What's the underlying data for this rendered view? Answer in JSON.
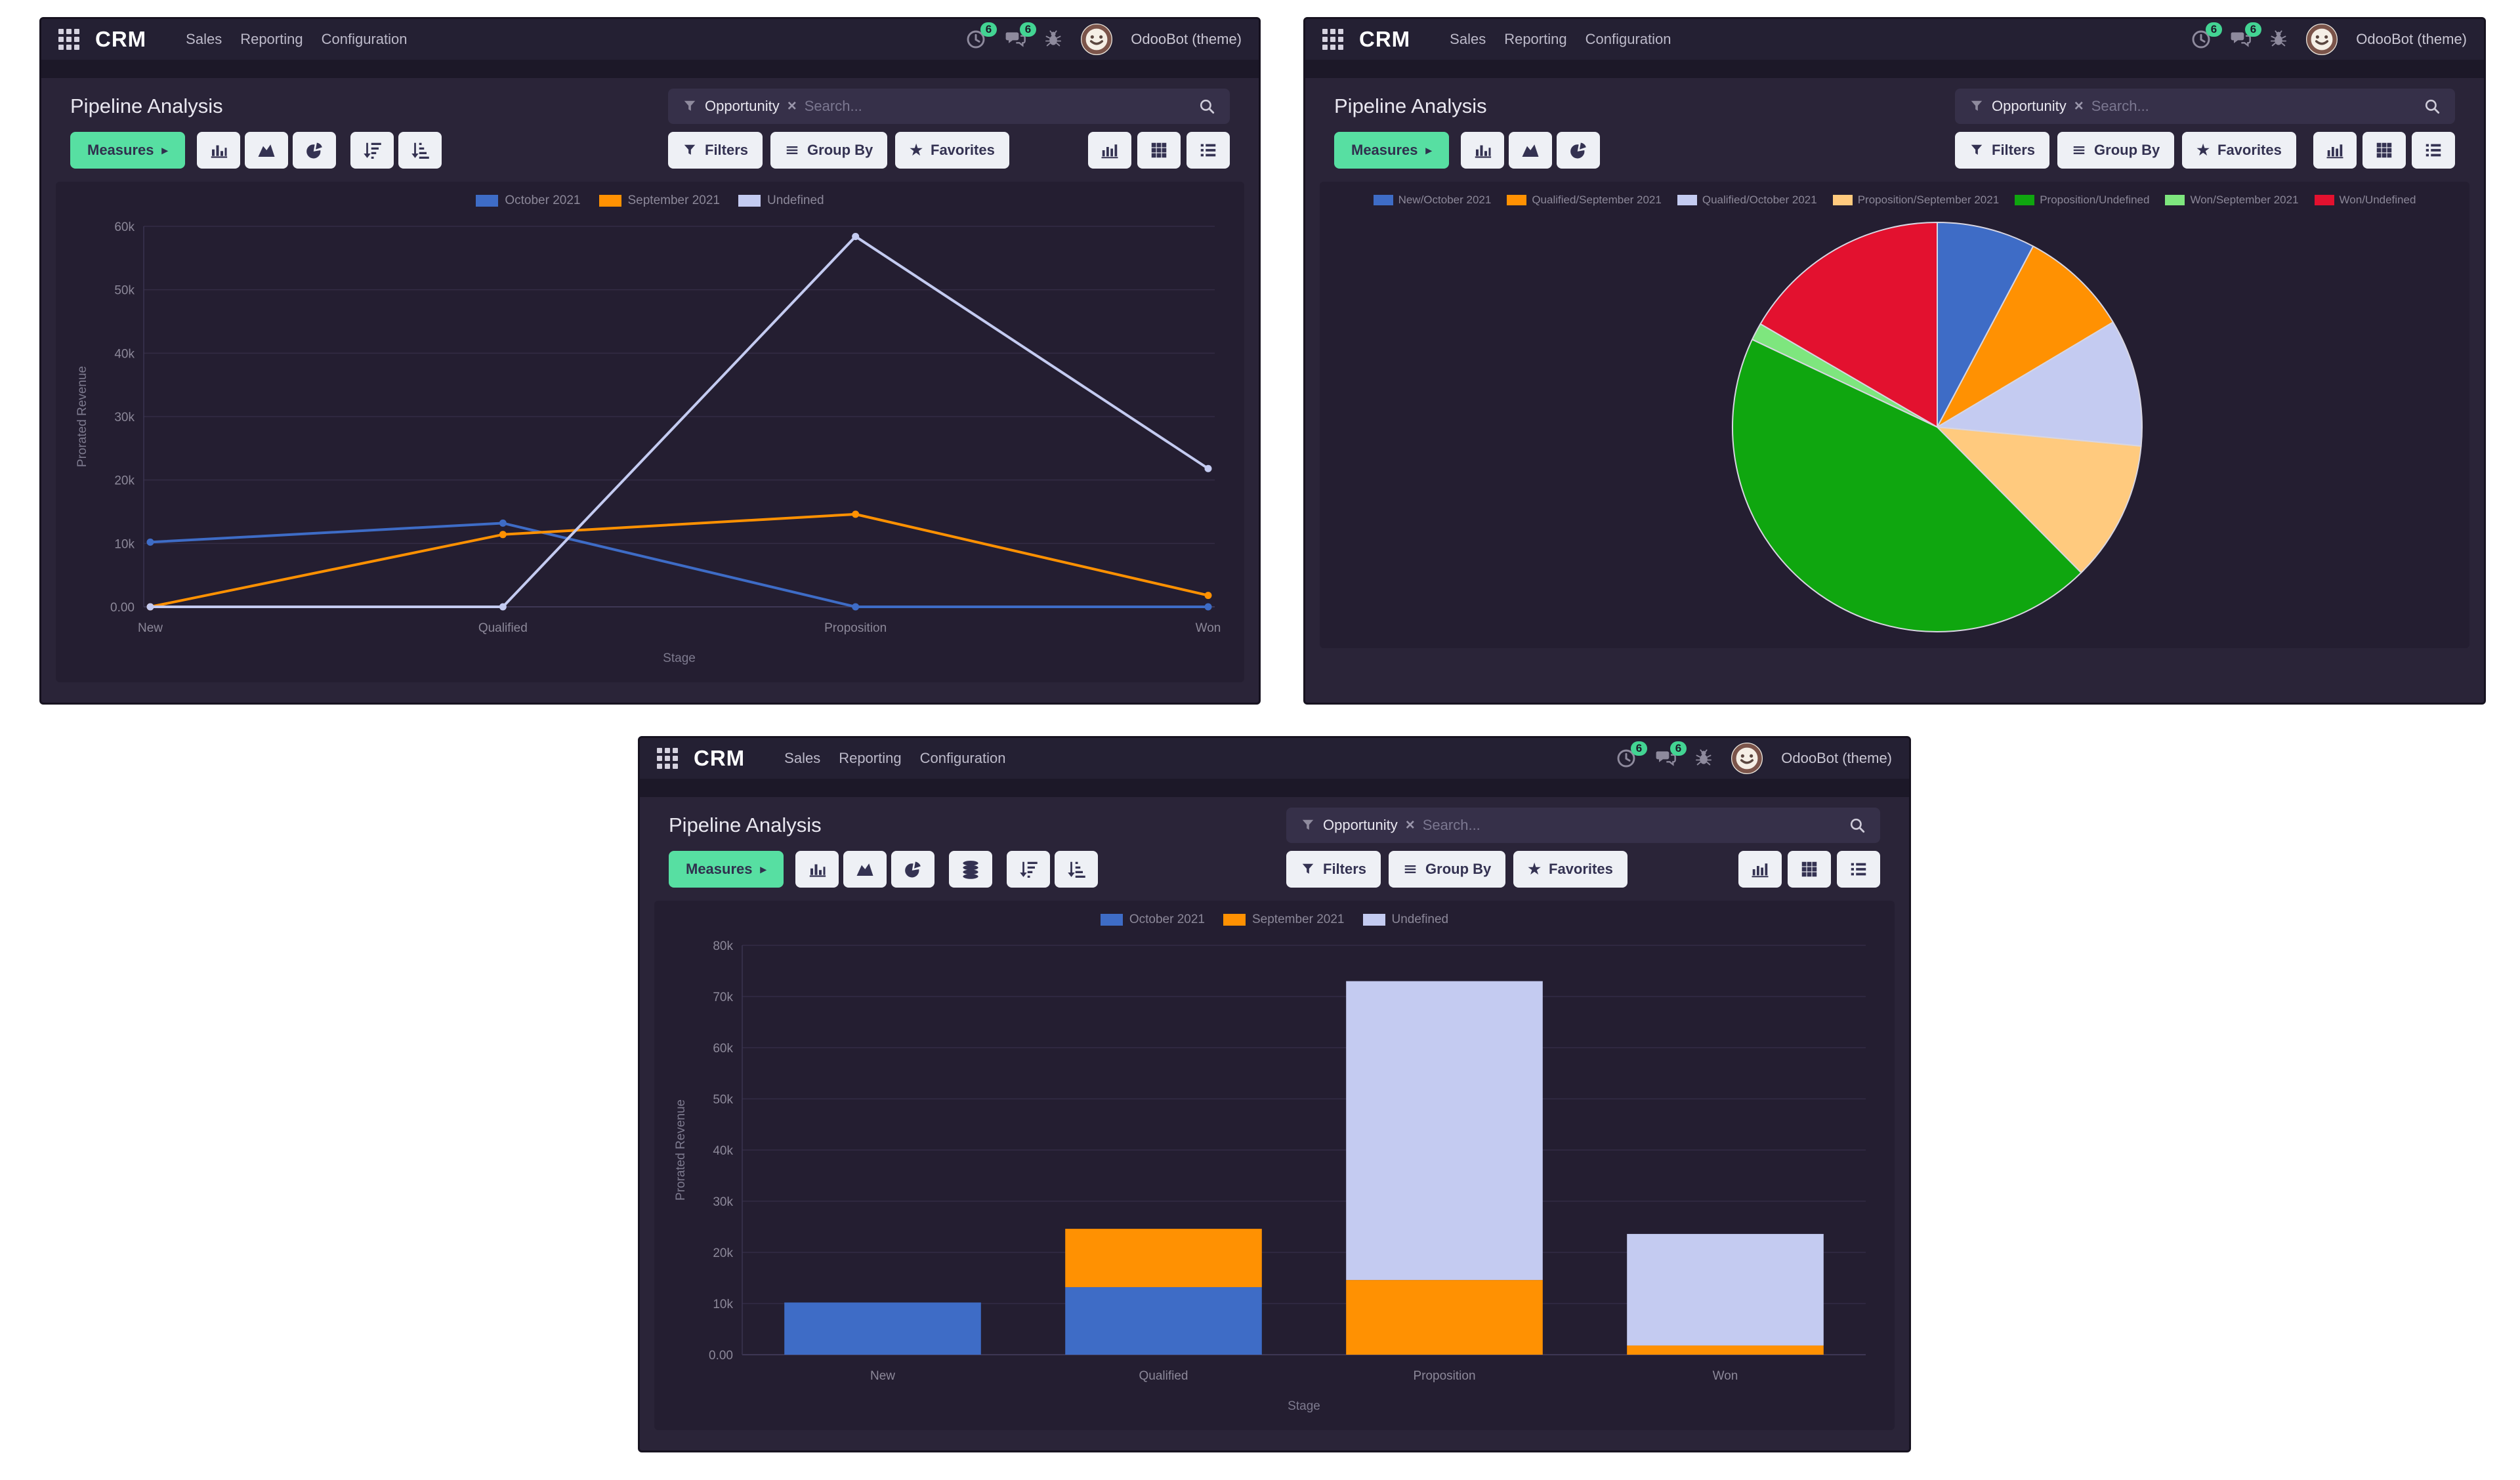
{
  "common": {
    "app_name": "CRM",
    "menus": [
      "Sales",
      "Reporting",
      "Configuration"
    ],
    "systray": {
      "activity_count": "6",
      "message_count": "6",
      "user": "OdooBot (theme)"
    },
    "page_title": "Pipeline Analysis",
    "search": {
      "facet": "Opportunity",
      "placeholder": "Search..."
    },
    "toolbar": {
      "measures": "Measures",
      "filters": "Filters",
      "group_by": "Group By",
      "favorites": "Favorites"
    },
    "colors": {
      "accent_green": "#57dfa2",
      "badge_green": "#43d493",
      "series_blue": "#3E6CC6",
      "series_orange": "#FF9102",
      "series_lavender": "#C4CBF1",
      "series_peach": "#FFCA7E",
      "series_green": "#0FA60F",
      "series_light_green": "#7EE67E",
      "series_red": "#E3112F"
    }
  },
  "windows": [
    {
      "name": "line-chart-window",
      "chart_data": {
        "type": "line",
        "categories": [
          "New",
          "Qualified",
          "Proposition",
          "Won"
        ],
        "series": [
          {
            "name": "October 2021",
            "color": "#3E6CC6",
            "values": [
              10200,
              13200,
              0,
              0
            ]
          },
          {
            "name": "September 2021",
            "color": "#FF9102",
            "values": [
              0,
              11400,
              14600,
              1800
            ]
          },
          {
            "name": "Undefined",
            "color": "#C4CBF1",
            "values": [
              0,
              0,
              58400,
              21800
            ]
          }
        ],
        "xlabel": "Stage",
        "ylabel": "Prorated Revenue",
        "ymax": 60000,
        "ytick_step": 10000,
        "yticklabels": [
          "0.00",
          "10k",
          "20k",
          "30k",
          "40k",
          "50k",
          "60k"
        ],
        "grid": true,
        "legend_position": "top"
      }
    },
    {
      "name": "pie-chart-window",
      "chart_data": {
        "type": "pie",
        "slices": [
          {
            "label": "New/October 2021",
            "color": "#3E6CC6",
            "value": 10200
          },
          {
            "label": "Qualified/September 2021",
            "color": "#FF9102",
            "value": 11400
          },
          {
            "label": "Qualified/October 2021",
            "color": "#C4CBF1",
            "value": 13200
          },
          {
            "label": "Proposition/September 2021",
            "color": "#FFCA7E",
            "value": 14600
          },
          {
            "label": "Proposition/Undefined",
            "color": "#0FA60F",
            "value": 58400
          },
          {
            "label": "Won/September 2021",
            "color": "#7EE67E",
            "value": 1800
          },
          {
            "label": "Won/Undefined",
            "color": "#E3112F",
            "value": 21800
          }
        ],
        "legend_position": "top"
      }
    },
    {
      "name": "bar-chart-window",
      "chart_data": {
        "type": "bar",
        "stacked": true,
        "categories": [
          "New",
          "Qualified",
          "Proposition",
          "Won"
        ],
        "series": [
          {
            "name": "October 2021",
            "color": "#3E6CC6",
            "values": [
              10200,
              13200,
              0,
              0
            ]
          },
          {
            "name": "September 2021",
            "color": "#FF9102",
            "values": [
              0,
              11400,
              14600,
              1800
            ]
          },
          {
            "name": "Undefined",
            "color": "#C4CBF1",
            "values": [
              0,
              0,
              58400,
              21800
            ]
          }
        ],
        "xlabel": "Stage",
        "ylabel": "Prorated Revenue",
        "ymax": 80000,
        "ytick_step": 10000,
        "yticklabels": [
          "0.00",
          "10k",
          "20k",
          "30k",
          "40k",
          "50k",
          "60k",
          "70k",
          "80k"
        ],
        "grid": true,
        "legend_position": "top"
      }
    }
  ]
}
